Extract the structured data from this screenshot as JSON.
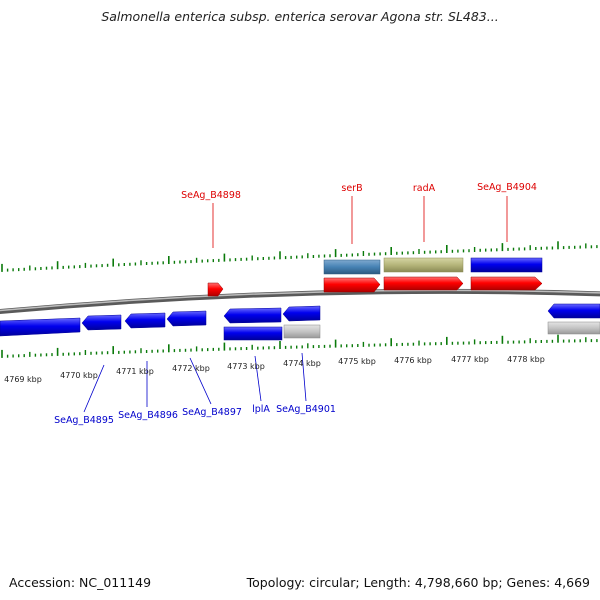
{
  "title": "Salmonella enterica subsp. enterica serovar Agona str. SL483...",
  "footer": {
    "accession": "Accession: NC_011149",
    "summary": "Topology: circular; Length: 4,798,660 bp; Genes: 4,669"
  },
  "colors": {
    "forward_cds": "#ff0000",
    "reverse_cds": "#0000ee",
    "gene_blue": "#0000ee",
    "steelblue_feature": "#4682b4",
    "khaki_feature": "#b5b57a",
    "pseudo_grey": "#c0c0c0",
    "label_red": "#dd0000",
    "label_blue": "#0000cc",
    "tick_green": "#0a7a0a",
    "backbone": "#888888"
  },
  "axis": {
    "unit": "kbp",
    "ticks": [
      "4769 kbp",
      "4770 kbp",
      "4771 kbp",
      "4772 kbp",
      "4773 kbp",
      "4774 kbp",
      "4775 kbp",
      "4776 kbp",
      "4777 kbp",
      "4778 kbp"
    ]
  },
  "labels": {
    "top": [
      "SeAg_B4898",
      "serB",
      "radA",
      "SeAg_B4904"
    ],
    "bottom": [
      "SeAg_B4895",
      "SeAg_B4896",
      "SeAg_B4897",
      "lplA",
      "SeAg_B4901"
    ]
  }
}
